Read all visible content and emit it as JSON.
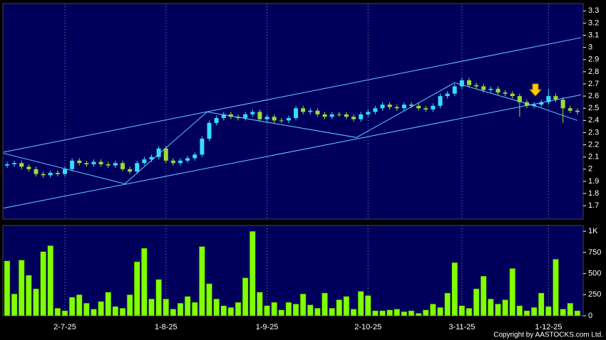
{
  "chart_data": [
    {
      "type": "candlestick",
      "categories": [
        null,
        null,
        null,
        null,
        null,
        null,
        null,
        null,
        "2-7-25",
        null,
        null,
        null,
        null,
        null,
        null,
        null,
        null,
        null,
        null,
        null,
        null,
        null,
        "1-8-25",
        null,
        null,
        null,
        null,
        null,
        null,
        null,
        null,
        null,
        null,
        null,
        null,
        null,
        "1-9-25",
        null,
        null,
        null,
        null,
        null,
        null,
        null,
        null,
        null,
        null,
        null,
        null,
        null,
        "2-10-25",
        null,
        null,
        null,
        null,
        null,
        null,
        null,
        null,
        null,
        null,
        null,
        null,
        "3-11-25",
        null,
        null,
        null,
        null,
        null,
        null,
        null,
        null,
        null,
        null,
        null,
        "1-12-25",
        null,
        null,
        null,
        null
      ],
      "open": [
        2.03,
        2.04,
        2.05,
        2.02,
        2.0,
        1.96,
        1.95,
        1.97,
        1.96,
        2.0,
        2.07,
        2.05,
        2.04,
        2.06,
        2.04,
        2.03,
        2.05,
        2.0,
        1.98,
        2.05,
        2.08,
        2.1,
        2.17,
        2.07,
        2.05,
        2.07,
        2.09,
        2.12,
        2.25,
        2.38,
        2.42,
        2.45,
        2.43,
        2.42,
        2.45,
        2.47,
        2.41,
        2.43,
        2.4,
        2.4,
        2.42,
        2.5,
        2.47,
        2.48,
        2.45,
        2.43,
        2.45,
        2.45,
        2.43,
        2.41,
        2.45,
        2.47,
        2.5,
        2.53,
        2.51,
        2.5,
        2.53,
        2.52,
        2.5,
        2.49,
        2.52,
        2.6,
        2.62,
        2.68,
        2.73,
        2.69,
        2.68,
        2.65,
        2.66,
        2.63,
        2.62,
        2.6,
        2.55,
        2.52,
        2.53,
        2.55,
        2.6,
        2.57,
        2.5,
        2.48
      ],
      "high": [
        2.06,
        2.07,
        2.07,
        2.04,
        2.02,
        1.98,
        1.99,
        1.99,
        2.02,
        2.09,
        2.09,
        2.07,
        2.08,
        2.08,
        2.06,
        2.07,
        2.07,
        2.02,
        2.07,
        2.1,
        2.12,
        2.19,
        2.19,
        2.09,
        2.09,
        2.11,
        2.14,
        2.27,
        2.4,
        2.44,
        2.47,
        2.47,
        2.45,
        2.47,
        2.49,
        2.49,
        2.45,
        2.45,
        2.42,
        2.44,
        2.52,
        2.52,
        2.5,
        2.5,
        2.47,
        2.47,
        2.47,
        2.47,
        2.45,
        2.47,
        2.49,
        2.52,
        2.55,
        2.55,
        2.53,
        2.55,
        2.55,
        2.54,
        2.52,
        2.54,
        2.62,
        2.64,
        2.7,
        2.75,
        2.75,
        2.71,
        2.7,
        2.68,
        2.68,
        2.65,
        2.64,
        2.62,
        2.57,
        2.55,
        2.57,
        2.66,
        2.62,
        2.59,
        2.52,
        2.5
      ],
      "low": [
        2.01,
        2.02,
        2.0,
        1.98,
        1.94,
        1.93,
        1.93,
        1.94,
        1.94,
        1.98,
        2.03,
        2.02,
        2.02,
        2.02,
        2.01,
        2.01,
        1.98,
        1.96,
        1.96,
        2.03,
        2.06,
        2.08,
        2.05,
        2.03,
        2.03,
        2.05,
        2.07,
        2.1,
        2.23,
        2.36,
        2.4,
        2.41,
        2.4,
        2.4,
        2.43,
        2.39,
        2.39,
        2.38,
        2.38,
        2.38,
        2.4,
        2.45,
        2.45,
        2.43,
        2.41,
        2.41,
        2.43,
        2.41,
        2.39,
        2.39,
        2.43,
        2.45,
        2.48,
        2.49,
        2.48,
        2.48,
        2.5,
        2.48,
        2.47,
        2.47,
        2.5,
        2.58,
        2.6,
        2.66,
        2.67,
        2.66,
        2.63,
        2.63,
        2.61,
        2.6,
        2.58,
        2.43,
        2.5,
        2.5,
        2.51,
        2.53,
        2.55,
        2.38,
        2.46,
        2.45
      ],
      "close": [
        2.04,
        2.05,
        2.02,
        2.0,
        1.96,
        1.95,
        1.97,
        1.96,
        2.0,
        2.07,
        2.05,
        2.04,
        2.06,
        2.04,
        2.03,
        2.05,
        2.0,
        1.98,
        2.05,
        2.08,
        2.1,
        2.17,
        2.07,
        2.05,
        2.07,
        2.09,
        2.12,
        2.25,
        2.38,
        2.42,
        2.45,
        2.43,
        2.42,
        2.45,
        2.47,
        2.41,
        2.43,
        2.4,
        2.4,
        2.42,
        2.5,
        2.47,
        2.48,
        2.45,
        2.43,
        2.45,
        2.45,
        2.43,
        2.41,
        2.45,
        2.47,
        2.5,
        2.53,
        2.51,
        2.5,
        2.53,
        2.52,
        2.5,
        2.49,
        2.52,
        2.6,
        2.62,
        2.68,
        2.73,
        2.69,
        2.68,
        2.65,
        2.66,
        2.63,
        2.62,
        2.6,
        2.55,
        2.52,
        2.53,
        2.55,
        2.6,
        2.57,
        2.5,
        2.48,
        2.47
      ],
      "up_color": "#33ddff",
      "down_color": "#99dd33",
      "ylim": [
        1.59,
        3.36
      ],
      "yticks": [
        1.7,
        1.8,
        1.9,
        2,
        2.1,
        2.2,
        2.3,
        2.4,
        2.5,
        2.6,
        2.7,
        2.8,
        2.9,
        3,
        3.1,
        3.2,
        3.3
      ],
      "trend_color": "#66ccff",
      "trend_lines": [
        {
          "x": [
            -0.5,
            79.5
          ],
          "y": [
            2.14,
            3.08
          ]
        },
        {
          "x": [
            -0.5,
            79.5
          ],
          "y": [
            1.68,
            2.61
          ]
        },
        {
          "x": [
            -0.5,
            16.3,
            27.7,
            48.4,
            62,
            73.6,
            79
          ],
          "y": [
            2.13,
            1.88,
            2.47,
            2.26,
            2.71,
            2.51,
            2.4
          ]
        }
      ]
    },
    {
      "type": "bar",
      "values": [
        650,
        260,
        660,
        480,
        320,
        760,
        830,
        90,
        60,
        220,
        250,
        150,
        80,
        170,
        280,
        110,
        90,
        250,
        640,
        800,
        200,
        430,
        200,
        80,
        150,
        230,
        160,
        820,
        380,
        200,
        120,
        100,
        160,
        450,
        1000,
        280,
        120,
        160,
        70,
        160,
        140,
        260,
        130,
        90,
        270,
        90,
        190,
        230,
        80,
        290,
        240,
        60,
        60,
        70,
        80,
        50,
        60,
        30,
        70,
        140,
        100,
        270,
        630,
        120,
        90,
        320,
        470,
        200,
        140,
        190,
        560,
        120,
        60,
        100,
        270,
        110,
        670,
        80,
        150,
        60
      ],
      "color": "#80ff00",
      "ylim": [
        0,
        1069
      ],
      "yticks": [
        0,
        250,
        500,
        750,
        {
          "value": 1000,
          "label": "1K"
        }
      ]
    },
    {
      "type": "text",
      "copyright": "Copyright by AASTOCKS.com Ltd."
    }
  ]
}
